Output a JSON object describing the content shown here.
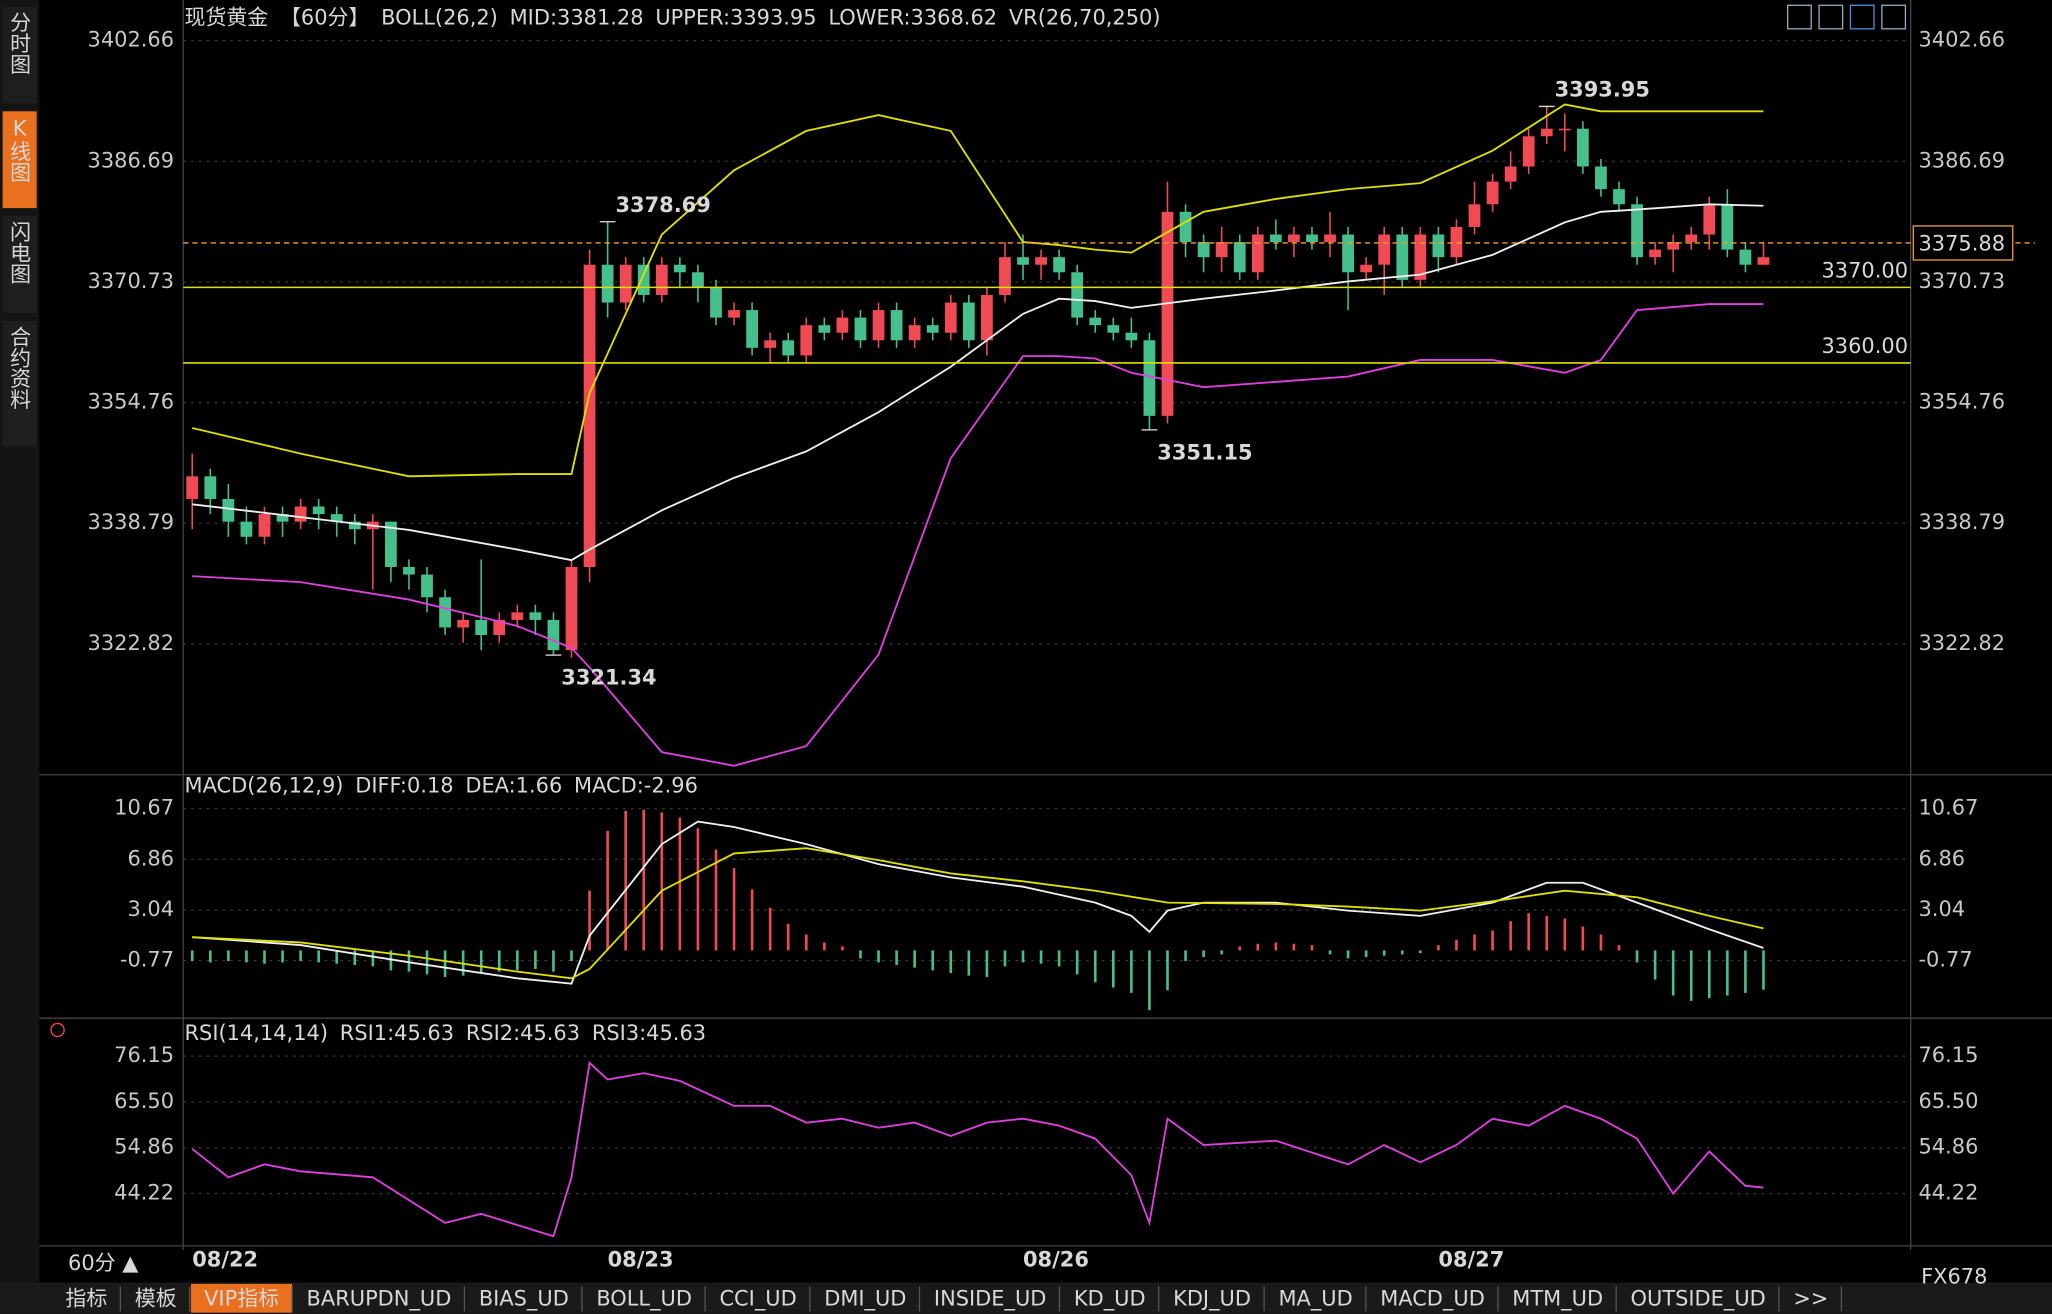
{
  "chart_data": [
    {
      "type": "candlestick",
      "labels": [
        {
          "text": "现货黄金",
          "color": "#e0e0e0"
        },
        {
          "text": "【60分】",
          "color": "#e8a030"
        },
        {
          "text": "BOLL(26,2)",
          "color": "#e0e0e0"
        },
        {
          "text": "MID:3381.28",
          "color": "#e0e0e0"
        },
        {
          "text": "UPPER:3393.95",
          "color": "#e0e000"
        },
        {
          "text": "LOWER:3368.62",
          "color": "#e040e0"
        },
        {
          "text": "VR(26,70,250)",
          "color": "#e0e0e0"
        }
      ],
      "xlim": [
        -0.5,
        95.15
      ],
      "ylim": [
        3305.85,
        3407.16
      ],
      "yticks": [
        3402.66,
        3386.69,
        3370.73,
        3354.76,
        3338.79,
        3322.82
      ],
      "grid": true,
      "up_color": "#f04a55",
      "down_color": "#45c08c",
      "open": [
        3342,
        3345,
        3342,
        3339,
        3337,
        3340,
        3339,
        3341,
        3340,
        3339,
        3338,
        3339,
        3333,
        3332,
        3329,
        3325,
        3326,
        3324,
        3326,
        3327,
        3326,
        3322,
        3333,
        3373,
        3368,
        3373,
        3369,
        3373,
        3372,
        3370,
        3366,
        3367,
        3362,
        3363,
        3361,
        3365,
        3364,
        3366,
        3363,
        3367,
        3363,
        3365,
        3364,
        3368,
        3363,
        3369,
        3374,
        3373,
        3374,
        3372,
        3366,
        3365,
        3364,
        3363,
        3353,
        3380,
        3376,
        3374,
        3376,
        3372,
        3377,
        3376,
        3377,
        3376,
        3377,
        3372,
        3373,
        3377,
        3371,
        3377,
        3374,
        3378,
        3381,
        3384,
        3386,
        3390,
        3391,
        3391,
        3386,
        3383,
        3381,
        3374,
        3375,
        3376,
        3377,
        3381,
        3375,
        3373
      ],
      "high": [
        3348,
        3346,
        3344,
        3341,
        3341,
        3341,
        3342,
        3342,
        3341,
        3340,
        3340,
        3339,
        3334,
        3333,
        3330,
        3327,
        3334,
        3327,
        3328,
        3328,
        3327,
        3334,
        3375,
        3378.69,
        3374,
        3374,
        3374,
        3374,
        3373,
        3371,
        3368,
        3368,
        3364,
        3364,
        3366,
        3366,
        3367,
        3367,
        3368,
        3368,
        3366,
        3366,
        3369,
        3369,
        3370,
        3376,
        3377,
        3375,
        3375,
        3373,
        3367,
        3366,
        3366,
        3364,
        3384,
        3381,
        3377,
        3378,
        3377,
        3378,
        3379,
        3378,
        3378,
        3380,
        3378,
        3374,
        3378,
        3378,
        3378,
        3378,
        3379,
        3384,
        3385,
        3388,
        3391,
        3393.95,
        3393,
        3392,
        3387,
        3384,
        3382,
        3376,
        3377,
        3378,
        3382,
        3383,
        3376,
        3376
      ],
      "low": [
        3338,
        3340,
        3337,
        3336,
        3336,
        3337,
        3338,
        3338,
        3337,
        3336,
        3330,
        3331,
        3330,
        3327,
        3324,
        3323,
        3322,
        3323,
        3325,
        3324,
        3321.34,
        3321,
        3331,
        3366,
        3367,
        3368,
        3368,
        3370,
        3368,
        3365,
        3365,
        3361,
        3360,
        3360,
        3360,
        3363,
        3363,
        3362,
        3362,
        3362,
        3362,
        3363,
        3363,
        3362,
        3361,
        3368,
        3371,
        3371,
        3371,
        3365,
        3364,
        3363,
        3362,
        3351.15,
        3352,
        3374,
        3372,
        3372,
        3371,
        3371,
        3375,
        3374,
        3375,
        3374,
        3367,
        3371,
        3369,
        3370,
        3370,
        3372,
        3373,
        3377,
        3380,
        3383,
        3385,
        3389,
        3388,
        3385,
        3382,
        3380,
        3373,
        3373,
        3372,
        3375,
        3375,
        3374,
        3372,
        3373
      ],
      "close": [
        3345,
        3342,
        3339,
        3337,
        3340,
        3339,
        3341,
        3340,
        3339,
        3338,
        3339,
        3333,
        3332,
        3329,
        3325,
        3326,
        3324,
        3326,
        3327,
        3326,
        3322,
        3333,
        3373,
        3368,
        3373,
        3369,
        3373,
        3372,
        3370,
        3366,
        3367,
        3362,
        3363,
        3361,
        3365,
        3364,
        3366,
        3363,
        3367,
        3363,
        3365,
        3364,
        3368,
        3363,
        3369,
        3374,
        3373,
        3374,
        3372,
        3366,
        3365,
        3364,
        3363,
        3353,
        3380,
        3376,
        3374,
        3376,
        3372,
        3377,
        3376,
        3377,
        3376,
        3377,
        3372,
        3373,
        3377,
        3371,
        3377,
        3374,
        3378,
        3381,
        3384,
        3386,
        3390,
        3391,
        3391,
        3386,
        3383,
        3381,
        3374,
        3375,
        3376,
        3377,
        3381,
        3375,
        3373,
        3374
      ],
      "series": [
        {
          "color": "#e0e000",
          "x": [
            0,
            6,
            12,
            18,
            21,
            22,
            26,
            30,
            34,
            38,
            42,
            46,
            48,
            50,
            52,
            56,
            60,
            64,
            68,
            72,
            76,
            78,
            80,
            84,
            87
          ],
          "values": [
            3351.4,
            3348,
            3345,
            3345.3,
            3345.3,
            3356,
            3377,
            3385.5,
            3390.7,
            3392.8,
            3390.7,
            3376,
            3375.6,
            3375,
            3374.6,
            3380,
            3381.7,
            3383,
            3383.8,
            3388.1,
            3394.2,
            3393.3,
            3393.3,
            3393.3,
            3393.3
          ]
        },
        {
          "color": "#f0f0f0",
          "x": [
            0,
            6,
            12,
            18,
            21,
            22,
            26,
            30,
            34,
            38,
            42,
            46,
            48,
            50,
            52,
            56,
            60,
            64,
            68,
            72,
            76,
            78,
            80,
            84,
            87
          ],
          "values": [
            3341.3,
            3339.6,
            3337.9,
            3335.3,
            3333.9,
            3335.3,
            3340.5,
            3344.8,
            3348.3,
            3353.5,
            3359.5,
            3366.5,
            3368.5,
            3368.2,
            3367.3,
            3368.5,
            3369.6,
            3370.8,
            3371.7,
            3374.3,
            3378.6,
            3380,
            3380.3,
            3381,
            3380.8
          ]
        },
        {
          "color": "#e040e0",
          "x": [
            0,
            6,
            12,
            18,
            21,
            22,
            26,
            30,
            34,
            38,
            42,
            46,
            48,
            50,
            52,
            56,
            60,
            64,
            68,
            72,
            76,
            78,
            80,
            84,
            87
          ],
          "values": [
            3331.8,
            3331,
            3328.7,
            3325.2,
            3322.3,
            3319.7,
            3308.5,
            3306.7,
            3309.3,
            3321.4,
            3347.4,
            3360.9,
            3360.9,
            3360.6,
            3358.7,
            3356.8,
            3357.5,
            3358.2,
            3360.4,
            3360.4,
            3358.7,
            3360.4,
            3367,
            3367.8,
            3367.8
          ]
        }
      ],
      "hlines": [
        {
          "value": 3370,
          "label": "3370.00",
          "color": "#e0e000"
        },
        {
          "value": 3360,
          "label": "3360.00",
          "color": "#e0e000"
        }
      ],
      "last_price": {
        "value": 3375.88,
        "label": "3375.88",
        "color": "#f0a030"
      },
      "extremes": [
        {
          "index": 23,
          "value": 3378.69,
          "label": "3378.69"
        },
        {
          "index": 20,
          "value": 3321.34,
          "label": "3321.34"
        },
        {
          "index": 75,
          "value": 3393.95,
          "label": "3393.95"
        },
        {
          "index": 53,
          "value": 3351.15,
          "label": "3351.15"
        }
      ],
      "date_labels": [
        {
          "index": 0,
          "label": "08/22"
        },
        {
          "index": 23,
          "label": "08/23"
        },
        {
          "index": 46,
          "label": "08/26"
        },
        {
          "index": 69,
          "label": "08/27"
        }
      ]
    },
    {
      "type": "macd",
      "labels": [
        {
          "text": "MACD(26,12,9)",
          "color": "#e0e0e0"
        },
        {
          "text": "DIFF:0.18",
          "color": "#e0e0e0"
        },
        {
          "text": "DEA:1.66",
          "color": "#e0e000"
        },
        {
          "text": "MACD:-2.96",
          "color": "#e040e0"
        }
      ],
      "xlim": [
        -0.5,
        95.15
      ],
      "ylim": [
        -4.81,
        11.75
      ],
      "yticks": [
        10.67,
        6.86,
        3.04,
        -0.77
      ],
      "grid": true,
      "up_color": "#f04a55",
      "down_color": "#45c08c",
      "histogram": [
        -0.8,
        -0.9,
        -0.8,
        -0.9,
        -1.0,
        -0.9,
        -0.8,
        -0.9,
        -1.0,
        -1.1,
        -1.2,
        -1.5,
        -1.6,
        -1.8,
        -2.0,
        -1.9,
        -1.7,
        -1.6,
        -1.5,
        -1.4,
        -1.6,
        -0.8,
        4.5,
        9.0,
        10.5,
        10.6,
        10.4,
        10.0,
        9.2,
        7.6,
        6.2,
        4.6,
        3.2,
        2.0,
        1.2,
        0.6,
        0.3,
        -0.6,
        -0.9,
        -1.1,
        -1.3,
        -1.5,
        -1.7,
        -1.9,
        -2.0,
        -1.2,
        -0.9,
        -1.0,
        -1.2,
        -1.8,
        -2.4,
        -2.8,
        -3.2,
        -4.5,
        -3.0,
        -0.8,
        -0.5,
        -0.3,
        0.3,
        0.5,
        0.6,
        0.5,
        0.4,
        -0.3,
        -0.6,
        -0.5,
        -0.4,
        -0.3,
        -0.2,
        0.4,
        0.8,
        1.2,
        1.5,
        2.2,
        2.8,
        2.6,
        2.4,
        1.8,
        1.2,
        0.4,
        -0.9,
        -2.2,
        -3.4,
        -3.8,
        -3.6,
        -3.4,
        -3.2,
        -2.96
      ],
      "series": [
        {
          "color": "#f0f0f0",
          "x": [
            0,
            6,
            12,
            18,
            21,
            22,
            26,
            28,
            30,
            34,
            38,
            42,
            46,
            50,
            52,
            53,
            54,
            56,
            60,
            64,
            68,
            72,
            75,
            77,
            80,
            84,
            87
          ],
          "values": [
            1.0,
            0.4,
            -0.9,
            -2.1,
            -2.5,
            1.1,
            8.0,
            9.7,
            9.3,
            8.0,
            6.5,
            5.5,
            4.8,
            3.6,
            2.6,
            1.4,
            3.0,
            3.6,
            3.6,
            3.0,
            2.6,
            3.6,
            5.1,
            5.1,
            3.6,
            1.6,
            0.18
          ]
        },
        {
          "color": "#e0e000",
          "x": [
            0,
            6,
            12,
            18,
            21,
            22,
            26,
            30,
            34,
            38,
            42,
            46,
            50,
            54,
            60,
            64,
            68,
            72,
            76,
            80,
            84,
            87
          ],
          "values": [
            1.0,
            0.6,
            -0.4,
            -1.6,
            -2.1,
            -1.4,
            4.5,
            7.3,
            7.7,
            6.8,
            5.8,
            5.2,
            4.5,
            3.6,
            3.5,
            3.3,
            3.0,
            3.7,
            4.5,
            4.0,
            2.6,
            1.66
          ]
        }
      ]
    },
    {
      "type": "line",
      "labels": [
        {
          "text": "RSI(14,14,14)",
          "color": "#e0e0e0"
        },
        {
          "text": "RSI1:45.63",
          "color": "#e0e0e0"
        },
        {
          "text": "RSI2:45.63",
          "color": "#e0e000"
        },
        {
          "text": "RSI3:45.63",
          "color": "#e040e0"
        }
      ],
      "xlim": [
        -0.5,
        95.15
      ],
      "ylim": [
        32.66,
        78.28
      ],
      "yticks": [
        76.15,
        {
          "value": 65.5,
          "label": "65.50"
        },
        54.86,
        44.22
      ],
      "grid": true,
      "series": [
        {
          "color": "#e040e0",
          "x": [
            0,
            2,
            4,
            6,
            10,
            14,
            16,
            20,
            21,
            22,
            23,
            25,
            27,
            30,
            32,
            34,
            36,
            38,
            40,
            42,
            44,
            46,
            48,
            50,
            52,
            53,
            54,
            56,
            60,
            64,
            66,
            68,
            70,
            72,
            74,
            76,
            78,
            80,
            82,
            84,
            86,
            87
          ],
          "values": [
            54.6,
            48,
            51,
            49.4,
            48,
            37.4,
            39.5,
            34.3,
            48,
            74.6,
            70.7,
            72.2,
            70.4,
            64.6,
            64.6,
            60.7,
            61.6,
            59.5,
            60.7,
            57.6,
            60.7,
            61.6,
            60,
            57,
            48.5,
            37.4,
            61.6,
            55.5,
            56.5,
            51,
            55.5,
            51.5,
            55.5,
            61.6,
            60,
            64.6,
            61.6,
            57,
            44.22,
            54,
            46,
            45.63
          ]
        }
      ]
    }
  ],
  "ui": {
    "sidebar": [
      "分时图",
      "K线图",
      "闪电图",
      "合约资料"
    ],
    "sidebar_active": 1,
    "tabs": [
      "指标",
      "模板",
      "VIP指标",
      "BARUPDN_UD",
      "BIAS_UD",
      "BOLL_UD",
      "CCI_UD",
      "DMI_UD",
      "INSIDE_UD",
      "KD_UD",
      "KDJ_UD",
      "MA_UD",
      "MACD_UD",
      "MTM_UD",
      "OUTSIDE_UD",
      ">>"
    ],
    "tabs_active": 2,
    "period_button": "60分 ▲",
    "watermark": "FX678"
  }
}
